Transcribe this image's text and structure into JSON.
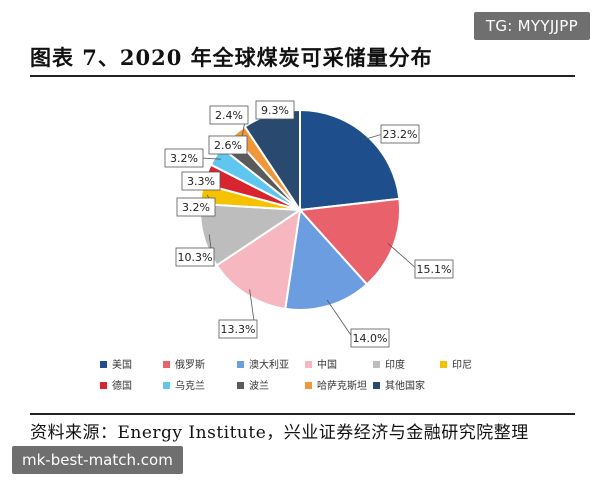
{
  "top_tag": "TG: MYYJJPP",
  "title": "图表 7、2020 年全球煤炭可采储量分布",
  "source": "资料来源：Energy Institute，兴业证券经济与金融研究院整理",
  "bottom_tag": "mk-best-match.com",
  "chart_data": {
    "type": "pie",
    "categories": [
      "美国",
      "俄罗斯",
      "澳大利亚",
      "中国",
      "印度",
      "印尼",
      "德国",
      "乌克兰",
      "波兰",
      "哈萨克斯坦",
      "其他国家"
    ],
    "values": [
      23.2,
      15.1,
      14.0,
      13.3,
      10.3,
      3.2,
      3.3,
      3.2,
      2.6,
      2.4,
      9.3
    ],
    "labels": [
      "23.2%",
      "15.1%",
      "14.0%",
      "13.3%",
      "10.3%",
      "3.2%",
      "3.3%",
      "3.2%",
      "2.6%",
      "2.4%",
      "9.3%"
    ],
    "colors": [
      "#1f4e8c",
      "#e8616b",
      "#6b9de0",
      "#f7b7c0",
      "#bdbdbd",
      "#f5c200",
      "#d7242f",
      "#5ec6ef",
      "#5a5a5a",
      "#f0973a",
      "#294a6e"
    ],
    "legend_position": "bottom"
  }
}
